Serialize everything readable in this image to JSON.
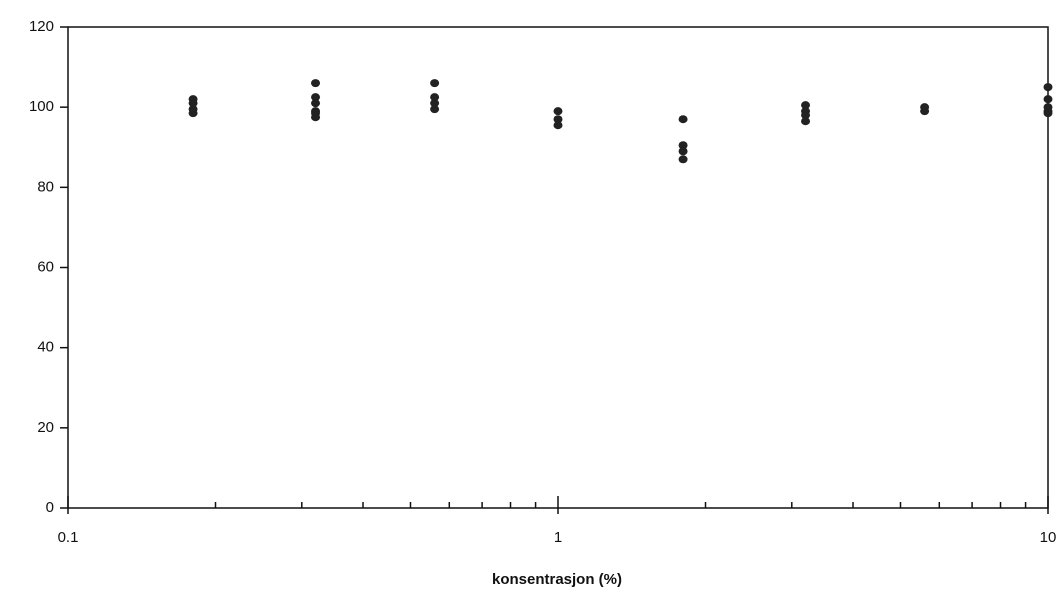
{
  "chart_data": {
    "type": "scatter",
    "xlabel": "konsentrasjon  (%)",
    "xscale": "log",
    "xlim": [
      0.1,
      10
    ],
    "xticks": [
      0.1,
      1,
      10
    ],
    "xminorticks": [
      0.2,
      0.3,
      0.4,
      0.5,
      0.6,
      0.7,
      0.8,
      0.9,
      2,
      3,
      4,
      5,
      6,
      7,
      8,
      9
    ],
    "ylim": [
      0,
      120
    ],
    "yticks": [
      0,
      20,
      40,
      60,
      80,
      100,
      120
    ],
    "grid": false,
    "series": [
      {
        "color": "#222222",
        "x": [
          0.18,
          0.18,
          0.18,
          0.18,
          0.32,
          0.32,
          0.32,
          0.32,
          0.32,
          0.32,
          0.56,
          0.56,
          0.56,
          0.56,
          1,
          1,
          1,
          1.8,
          1.8,
          1.8,
          1.8,
          3.2,
          3.2,
          3.2,
          3.2,
          5.6,
          5.6,
          10,
          10,
          10,
          10,
          10
        ],
        "values": [
          102,
          101,
          99.5,
          98.5,
          106,
          102.5,
          101,
          99,
          98.5,
          97.5,
          106,
          102.5,
          101,
          99.5,
          99,
          97,
          95.5,
          97,
          90.5,
          89,
          87,
          100.5,
          99,
          98,
          96.5,
          100,
          99,
          105,
          102,
          100,
          99,
          98.5
        ]
      }
    ]
  }
}
